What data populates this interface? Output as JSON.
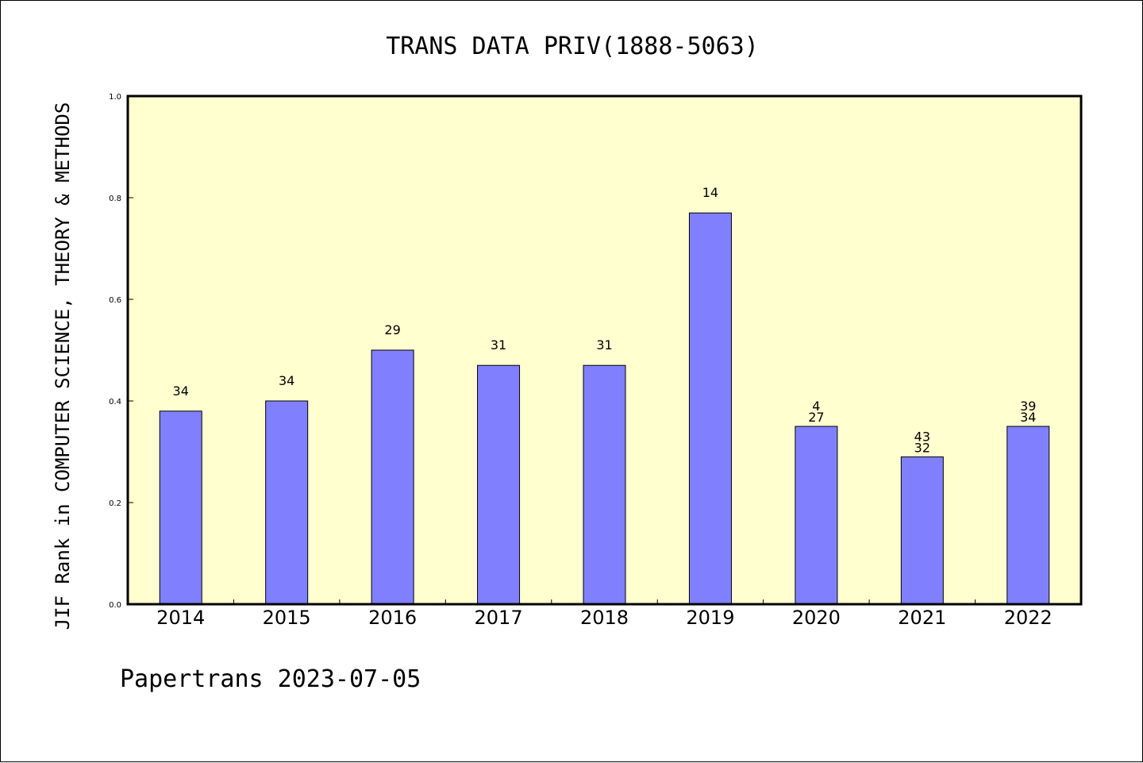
{
  "chart_data": {
    "type": "bar",
    "title": "TRANS DATA PRIV(1888-5063)",
    "xlabel": "",
    "ylabel": "JIF Rank in COMPUTER SCIENCE, THEORY & METHODS",
    "ylim": [
      0,
      1.0
    ],
    "yticks": [
      "0.0",
      "0.2",
      "0.4",
      "0.6",
      "0.8",
      "1.0"
    ],
    "grid": false,
    "categories": [
      "2014",
      "2015",
      "2016",
      "2017",
      "2018",
      "2019",
      "2020",
      "2021",
      "2022"
    ],
    "values": [
      0.38,
      0.4,
      0.5,
      0.47,
      0.47,
      0.77,
      0.35,
      0.29,
      0.35
    ],
    "bar_labels": [
      [
        "34"
      ],
      [
        "34"
      ],
      [
        "29"
      ],
      [
        "31"
      ],
      [
        "31"
      ],
      [
        "14"
      ],
      [
        "4",
        "27"
      ],
      [
        "43",
        "32"
      ],
      [
        "39",
        "34"
      ]
    ],
    "colors": {
      "plot_background": "#ffffd0",
      "bar_fill": "#8080ff",
      "bar_stroke": "#000000"
    }
  },
  "footer": "Papertrans 2023-07-05"
}
